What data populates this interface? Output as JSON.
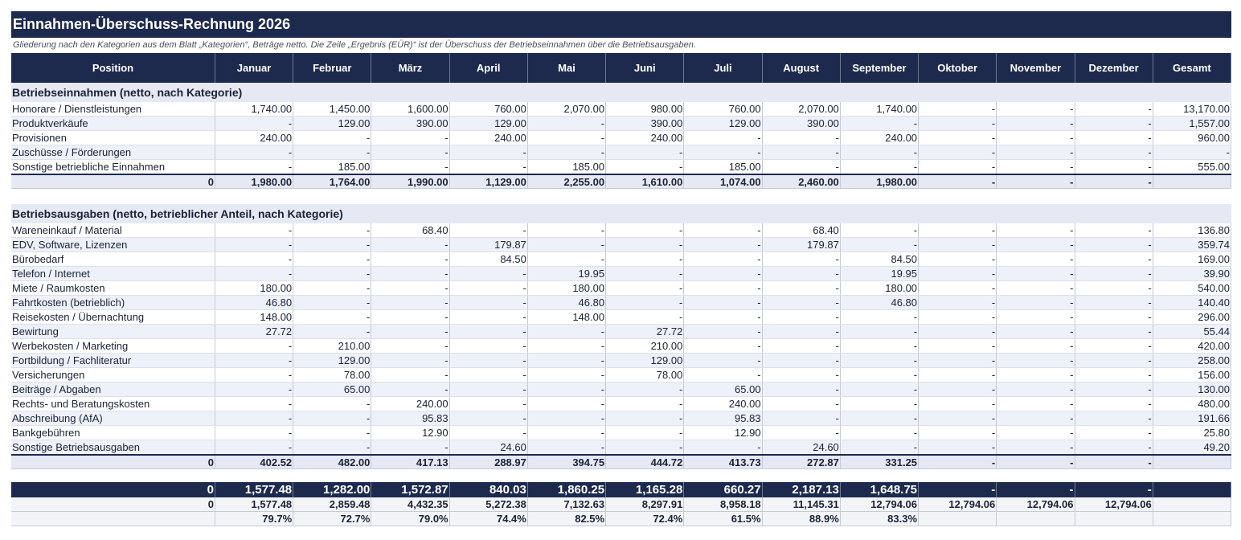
{
  "title": "Einnahmen-Überschuss-Rechnung 2026",
  "subtitle": "Gliederung nach den Kategorien aus dem Blatt „Kategorien“, Beträge netto. Die Zeile „Ergebnis (EÜR)“ ist der Überschuss der Betriebseinnahmen über die Betriebsausgaben.",
  "columns": [
    "Position",
    "Januar",
    "Februar",
    "März",
    "April",
    "Mai",
    "Juni",
    "Juli",
    "August",
    "September",
    "Oktober",
    "November",
    "Dezember",
    "Gesamt"
  ],
  "income": {
    "heading": "Betriebseinnahmen (netto, nach Kategorie)",
    "rows": [
      {
        "label": "Honorare / Dienstleistungen",
        "values": [
          "1,740.00",
          "1,450.00",
          "1,600.00",
          "760.00",
          "2,070.00",
          "980.00",
          "760.00",
          "2,070.00",
          "1,740.00",
          "-",
          "-",
          "-",
          "13,170.00"
        ]
      },
      {
        "label": "Produktverkäufe",
        "values": [
          "-",
          "129.00",
          "390.00",
          "129.00",
          "-",
          "390.00",
          "129.00",
          "390.00",
          "-",
          "-",
          "-",
          "-",
          "1,557.00"
        ]
      },
      {
        "label": "Provisionen",
        "values": [
          "240.00",
          "-",
          "-",
          "240.00",
          "-",
          "240.00",
          "-",
          "-",
          "240.00",
          "-",
          "-",
          "-",
          "960.00"
        ]
      },
      {
        "label": "Zuschüsse / Förderungen",
        "values": [
          "-",
          "-",
          "-",
          "-",
          "-",
          "-",
          "-",
          "-",
          "-",
          "-",
          "-",
          "-",
          "-"
        ]
      },
      {
        "label": "Sonstige betriebliche Einnahmen",
        "values": [
          "-",
          "185.00",
          "-",
          "-",
          "185.00",
          "-",
          "185.00",
          "-",
          "-",
          "-",
          "-",
          "-",
          "555.00"
        ]
      }
    ],
    "total": {
      "label": "0",
      "values": [
        "1,980.00",
        "1,764.00",
        "1,990.00",
        "1,129.00",
        "2,255.00",
        "1,610.00",
        "1,074.00",
        "2,460.00",
        "1,980.00",
        "-",
        "-",
        "-",
        ""
      ]
    }
  },
  "expenses": {
    "heading": "Betriebsausgaben (netto, betrieblicher Anteil, nach Kategorie)",
    "rows": [
      {
        "label": "Wareneinkauf / Material",
        "values": [
          "-",
          "-",
          "68.40",
          "-",
          "-",
          "-",
          "-",
          "68.40",
          "-",
          "-",
          "-",
          "-",
          "136.80"
        ]
      },
      {
        "label": "EDV, Software, Lizenzen",
        "values": [
          "-",
          "-",
          "-",
          "179.87",
          "-",
          "-",
          "-",
          "179.87",
          "-",
          "-",
          "-",
          "-",
          "359.74"
        ]
      },
      {
        "label": "Bürobedarf",
        "values": [
          "-",
          "-",
          "-",
          "84.50",
          "-",
          "-",
          "-",
          "-",
          "84.50",
          "-",
          "-",
          "-",
          "169.00"
        ]
      },
      {
        "label": "Telefon / Internet",
        "values": [
          "-",
          "-",
          "-",
          "-",
          "19.95",
          "-",
          "-",
          "-",
          "19.95",
          "-",
          "-",
          "-",
          "39.90"
        ]
      },
      {
        "label": "Miete / Raumkosten",
        "values": [
          "180.00",
          "-",
          "-",
          "-",
          "180.00",
          "-",
          "-",
          "-",
          "180.00",
          "-",
          "-",
          "-",
          "540.00"
        ]
      },
      {
        "label": "Fahrtkosten (betrieblich)",
        "values": [
          "46.80",
          "-",
          "-",
          "-",
          "46.80",
          "-",
          "-",
          "-",
          "46.80",
          "-",
          "-",
          "-",
          "140.40"
        ]
      },
      {
        "label": "Reisekosten / Übernachtung",
        "values": [
          "148.00",
          "-",
          "-",
          "-",
          "148.00",
          "-",
          "-",
          "-",
          "-",
          "-",
          "-",
          "-",
          "296.00"
        ]
      },
      {
        "label": "Bewirtung",
        "values": [
          "27.72",
          "-",
          "-",
          "-",
          "-",
          "27.72",
          "-",
          "-",
          "-",
          "-",
          "-",
          "-",
          "55.44"
        ]
      },
      {
        "label": "Werbekosten / Marketing",
        "values": [
          "-",
          "210.00",
          "-",
          "-",
          "-",
          "210.00",
          "-",
          "-",
          "-",
          "-",
          "-",
          "-",
          "420.00"
        ]
      },
      {
        "label": "Fortbildung / Fachliteratur",
        "values": [
          "-",
          "129.00",
          "-",
          "-",
          "-",
          "129.00",
          "-",
          "-",
          "-",
          "-",
          "-",
          "-",
          "258.00"
        ]
      },
      {
        "label": "Versicherungen",
        "values": [
          "-",
          "78.00",
          "-",
          "-",
          "-",
          "78.00",
          "-",
          "-",
          "-",
          "-",
          "-",
          "-",
          "156.00"
        ]
      },
      {
        "label": "Beiträge / Abgaben",
        "values": [
          "-",
          "65.00",
          "-",
          "-",
          "-",
          "-",
          "65.00",
          "-",
          "-",
          "-",
          "-",
          "-",
          "130.00"
        ]
      },
      {
        "label": "Rechts- und Beratungskosten",
        "values": [
          "-",
          "-",
          "240.00",
          "-",
          "-",
          "-",
          "240.00",
          "-",
          "-",
          "-",
          "-",
          "-",
          "480.00"
        ]
      },
      {
        "label": "Abschreibung (AfA)",
        "values": [
          "-",
          "-",
          "95.83",
          "-",
          "-",
          "-",
          "95.83",
          "-",
          "-",
          "-",
          "-",
          "-",
          "191.66"
        ]
      },
      {
        "label": "Bankgebühren",
        "values": [
          "-",
          "-",
          "12.90",
          "-",
          "-",
          "-",
          "12.90",
          "-",
          "-",
          "-",
          "-",
          "-",
          "25.80"
        ]
      },
      {
        "label": "Sonstige Betriebsausgaben",
        "values": [
          "-",
          "-",
          "-",
          "24.60",
          "-",
          "-",
          "-",
          "24.60",
          "-",
          "-",
          "-",
          "-",
          "49.20"
        ]
      }
    ],
    "total": {
      "label": "0",
      "values": [
        "402.52",
        "482.00",
        "417.13",
        "288.97",
        "394.75",
        "444.72",
        "413.73",
        "272.87",
        "331.25",
        "-",
        "-",
        "-",
        ""
      ]
    }
  },
  "result": {
    "label": "0",
    "values": [
      "1,577.48",
      "1,282.00",
      "1,572.87",
      "840.03",
      "1,860.25",
      "1,165.28",
      "660.27",
      "2,187.13",
      "1,648.75",
      "-",
      "-",
      "-",
      ""
    ]
  },
  "cumulative": {
    "label": "0",
    "values": [
      "1,577.48",
      "2,859.48",
      "4,432.35",
      "5,272.38",
      "7,132.63",
      "8,297.91",
      "8,958.18",
      "11,145.31",
      "12,794.06",
      "12,794.06",
      "12,794.06",
      "12,794.06",
      ""
    ]
  },
  "margin": {
    "label": "",
    "values": [
      "79.7%",
      "72.7%",
      "79.0%",
      "74.4%",
      "82.5%",
      "72.4%",
      "61.5%",
      "88.9%",
      "83.3%",
      "",
      "",
      "",
      ""
    ]
  }
}
